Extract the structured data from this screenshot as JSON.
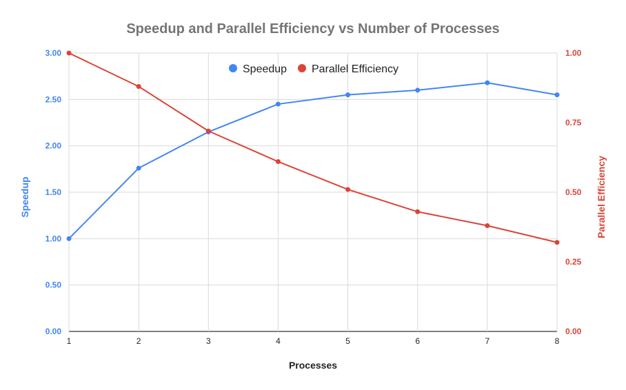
{
  "chart_data": {
    "type": "line",
    "title": "Speedup and Parallel Efficiency vs Number of Processes",
    "xlabel": "Processes",
    "x": [
      1,
      2,
      3,
      4,
      5,
      6,
      7,
      8
    ],
    "y_left": {
      "label": "Speedup",
      "range": [
        0,
        3
      ],
      "ticks": [
        "0.00",
        "0.50",
        "1.00",
        "1.50",
        "2.00",
        "2.50",
        "3.00"
      ],
      "tick_values": [
        0,
        0.5,
        1,
        1.5,
        2,
        2.5,
        3
      ],
      "color": "#4285F4"
    },
    "y_right": {
      "label": "Parallel Efficiency",
      "range": [
        0,
        1
      ],
      "ticks": [
        "0.00",
        "0.25",
        "0.50",
        "0.75",
        "1.00"
      ],
      "tick_values": [
        0,
        0.25,
        0.5,
        0.75,
        1
      ],
      "color": "#DB4437"
    },
    "series": [
      {
        "name": "Speedup",
        "axis": "left",
        "color": "#4285F4",
        "values": [
          1.0,
          1.76,
          2.15,
          2.45,
          2.55,
          2.6,
          2.68,
          2.55
        ]
      },
      {
        "name": "Parallel Efficiency",
        "axis": "right",
        "color": "#DB4437",
        "values": [
          1.0,
          0.88,
          0.72,
          0.61,
          0.51,
          0.43,
          0.38,
          0.32
        ]
      }
    ],
    "legend_position": "top-center",
    "grid": true
  }
}
